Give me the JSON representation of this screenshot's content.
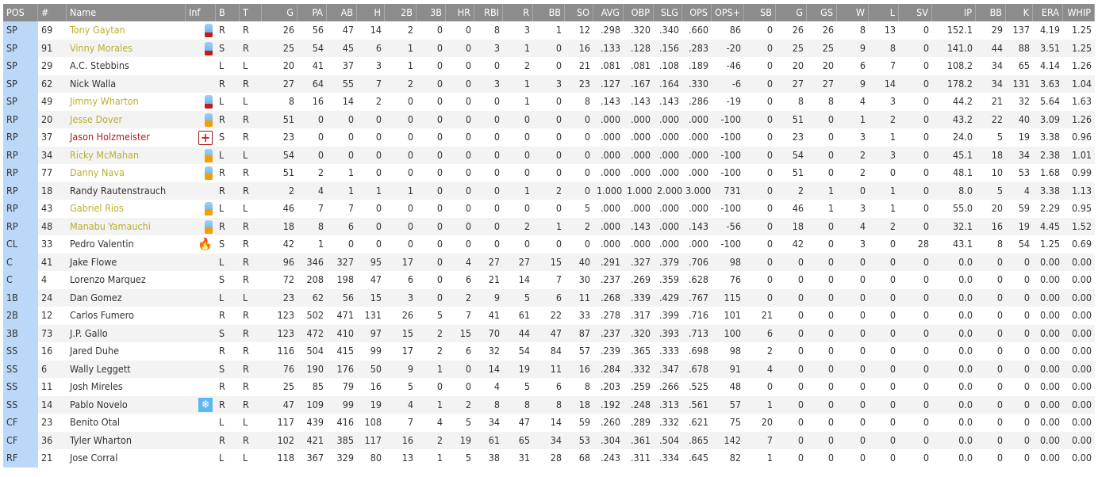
{
  "columns": [
    "POS",
    "#",
    "Name",
    "Inf",
    "B",
    "T",
    "G",
    "PA",
    "AB",
    "H",
    "2B",
    "3B",
    "HR",
    "RBI",
    "R",
    "BB",
    "SO",
    "AVG",
    "OBP",
    "SLG",
    "OPS",
    "OPS+",
    "SB",
    "G",
    "GS",
    "W",
    "L",
    "SV",
    "IP",
    "BB",
    "K",
    "ERA",
    "WHIP"
  ],
  "colors": {
    "header_bg": "#8c8c8c",
    "pos_bg": "#bcd8f8",
    "warn_name": "#b8b030",
    "injured_name": "#b02020"
  },
  "rows": [
    [
      "SP",
      "69",
      "Tony Gaytan",
      "battery-low-icon",
      "R",
      "R",
      "26",
      "56",
      "47",
      "14",
      "2",
      "0",
      "0",
      "8",
      "3",
      "1",
      "12",
      ".298",
      ".320",
      ".340",
      ".660",
      "86",
      "0",
      "26",
      "26",
      "8",
      "13",
      "0",
      "152.1",
      "29",
      "137",
      "4.19",
      "1.25"
    ],
    [
      "SP",
      "91",
      "Vinny Morales",
      "battery-low-icon",
      "S",
      "R",
      "25",
      "54",
      "45",
      "6",
      "1",
      "0",
      "0",
      "3",
      "1",
      "0",
      "16",
      ".133",
      ".128",
      ".156",
      ".283",
      "-20",
      "0",
      "25",
      "25",
      "9",
      "8",
      "0",
      "141.0",
      "44",
      "88",
      "3.51",
      "1.25"
    ],
    [
      "SP",
      "29",
      "A.C. Stebbins",
      "",
      "L",
      "L",
      "20",
      "41",
      "37",
      "3",
      "1",
      "0",
      "0",
      "0",
      "2",
      "0",
      "21",
      ".081",
      ".081",
      ".108",
      ".189",
      "-46",
      "0",
      "20",
      "20",
      "6",
      "7",
      "0",
      "108.2",
      "34",
      "65",
      "4.14",
      "1.26"
    ],
    [
      "SP",
      "62",
      "Nick Walla",
      "",
      "R",
      "R",
      "27",
      "64",
      "55",
      "7",
      "2",
      "0",
      "0",
      "3",
      "1",
      "3",
      "23",
      ".127",
      ".167",
      ".164",
      ".330",
      "-6",
      "0",
      "27",
      "27",
      "9",
      "14",
      "0",
      "178.2",
      "34",
      "131",
      "3.63",
      "1.04"
    ],
    [
      "SP",
      "49",
      "Jimmy Wharton",
      "battery-low-icon",
      "L",
      "L",
      "8",
      "16",
      "14",
      "2",
      "0",
      "0",
      "0",
      "0",
      "1",
      "0",
      "8",
      ".143",
      ".143",
      ".143",
      ".286",
      "-19",
      "0",
      "8",
      "8",
      "4",
      "3",
      "0",
      "44.2",
      "21",
      "32",
      "5.64",
      "1.63"
    ],
    [
      "RP",
      "20",
      "Jesse Dover",
      "battery-mid-icon",
      "R",
      "R",
      "51",
      "0",
      "0",
      "0",
      "0",
      "0",
      "0",
      "0",
      "0",
      "0",
      "0",
      ".000",
      ".000",
      ".000",
      ".000",
      "-100",
      "0",
      "51",
      "0",
      "1",
      "2",
      "0",
      "43.2",
      "22",
      "40",
      "3.09",
      "1.26"
    ],
    [
      "RP",
      "37",
      "Jason Holzmeister",
      "injury-icon",
      "S",
      "R",
      "23",
      "0",
      "0",
      "0",
      "0",
      "0",
      "0",
      "0",
      "0",
      "0",
      "0",
      ".000",
      ".000",
      ".000",
      ".000",
      "-100",
      "0",
      "23",
      "0",
      "3",
      "1",
      "0",
      "24.0",
      "5",
      "19",
      "3.38",
      "0.96"
    ],
    [
      "RP",
      "34",
      "Ricky McMahan",
      "battery-mid-icon",
      "L",
      "L",
      "54",
      "0",
      "0",
      "0",
      "0",
      "0",
      "0",
      "0",
      "0",
      "0",
      "0",
      ".000",
      ".000",
      ".000",
      ".000",
      "-100",
      "0",
      "54",
      "0",
      "2",
      "3",
      "0",
      "45.1",
      "18",
      "34",
      "2.38",
      "1.01"
    ],
    [
      "RP",
      "77",
      "Danny Nava",
      "battery-mid-icon",
      "R",
      "R",
      "51",
      "2",
      "1",
      "0",
      "0",
      "0",
      "0",
      "0",
      "0",
      "0",
      "0",
      ".000",
      ".000",
      ".000",
      ".000",
      "-100",
      "0",
      "51",
      "0",
      "2",
      "0",
      "0",
      "48.1",
      "10",
      "53",
      "1.68",
      "0.99"
    ],
    [
      "RP",
      "18",
      "Randy Rautenstrauch",
      "",
      "R",
      "R",
      "2",
      "4",
      "1",
      "1",
      "1",
      "0",
      "0",
      "0",
      "1",
      "2",
      "0",
      "1.000",
      "1.000",
      "2.000",
      "3.000",
      "731",
      "0",
      "2",
      "1",
      "0",
      "1",
      "0",
      "8.0",
      "5",
      "4",
      "3.38",
      "1.13"
    ],
    [
      "RP",
      "43",
      "Gabriel Rios",
      "battery-mid-icon",
      "L",
      "L",
      "46",
      "7",
      "7",
      "0",
      "0",
      "0",
      "0",
      "0",
      "0",
      "0",
      "5",
      ".000",
      ".000",
      ".000",
      ".000",
      "-100",
      "0",
      "46",
      "1",
      "3",
      "1",
      "0",
      "55.0",
      "20",
      "59",
      "2.29",
      "0.95"
    ],
    [
      "RP",
      "48",
      "Manabu Yamauchi",
      "battery-mid-icon",
      "R",
      "R",
      "18",
      "8",
      "6",
      "0",
      "0",
      "0",
      "0",
      "0",
      "2",
      "1",
      "2",
      ".000",
      ".143",
      ".000",
      ".143",
      "-56",
      "0",
      "18",
      "0",
      "4",
      "2",
      "0",
      "32.1",
      "16",
      "19",
      "4.45",
      "1.52"
    ],
    [
      "CL",
      "33",
      "Pedro Valentin",
      "fire-icon",
      "S",
      "R",
      "42",
      "1",
      "0",
      "0",
      "0",
      "0",
      "0",
      "0",
      "0",
      "0",
      "0",
      ".000",
      ".000",
      ".000",
      ".000",
      "-100",
      "0",
      "42",
      "0",
      "3",
      "0",
      "28",
      "43.1",
      "8",
      "54",
      "1.25",
      "0.69"
    ],
    [
      "C",
      "41",
      "Jake Flowe",
      "",
      "L",
      "R",
      "96",
      "346",
      "327",
      "95",
      "17",
      "0",
      "4",
      "27",
      "27",
      "15",
      "40",
      ".291",
      ".327",
      ".379",
      ".706",
      "98",
      "0",
      "0",
      "0",
      "0",
      "0",
      "0",
      "0.0",
      "0",
      "0",
      "0.00",
      "0.00"
    ],
    [
      "C",
      "4",
      "Lorenzo Marquez",
      "",
      "S",
      "R",
      "72",
      "208",
      "198",
      "47",
      "6",
      "0",
      "6",
      "21",
      "14",
      "7",
      "30",
      ".237",
      ".269",
      ".359",
      ".628",
      "76",
      "0",
      "0",
      "0",
      "0",
      "0",
      "0",
      "0.0",
      "0",
      "0",
      "0.00",
      "0.00"
    ],
    [
      "1B",
      "24",
      "Dan Gomez",
      "",
      "L",
      "L",
      "23",
      "62",
      "56",
      "15",
      "3",
      "0",
      "2",
      "9",
      "5",
      "6",
      "11",
      ".268",
      ".339",
      ".429",
      ".767",
      "115",
      "0",
      "0",
      "0",
      "0",
      "0",
      "0",
      "0.0",
      "0",
      "0",
      "0.00",
      "0.00"
    ],
    [
      "2B",
      "12",
      "Carlos Fumero",
      "",
      "R",
      "R",
      "123",
      "502",
      "471",
      "131",
      "26",
      "5",
      "7",
      "41",
      "61",
      "22",
      "33",
      ".278",
      ".317",
      ".399",
      ".716",
      "101",
      "21",
      "0",
      "0",
      "0",
      "0",
      "0",
      "0.0",
      "0",
      "0",
      "0.00",
      "0.00"
    ],
    [
      "3B",
      "73",
      "J.P. Gallo",
      "",
      "S",
      "R",
      "123",
      "472",
      "410",
      "97",
      "15",
      "2",
      "15",
      "70",
      "44",
      "47",
      "87",
      ".237",
      ".320",
      ".393",
      ".713",
      "100",
      "6",
      "0",
      "0",
      "0",
      "0",
      "0",
      "0.0",
      "0",
      "0",
      "0.00",
      "0.00"
    ],
    [
      "SS",
      "16",
      "Jared Duhe",
      "",
      "R",
      "R",
      "116",
      "504",
      "415",
      "99",
      "17",
      "2",
      "6",
      "32",
      "54",
      "84",
      "57",
      ".239",
      ".365",
      ".333",
      ".698",
      "98",
      "2",
      "0",
      "0",
      "0",
      "0",
      "0",
      "0.0",
      "0",
      "0",
      "0.00",
      "0.00"
    ],
    [
      "SS",
      "6",
      "Wally Leggett",
      "",
      "S",
      "R",
      "76",
      "190",
      "176",
      "50",
      "9",
      "1",
      "0",
      "14",
      "19",
      "11",
      "16",
      ".284",
      ".332",
      ".347",
      ".678",
      "91",
      "4",
      "0",
      "0",
      "0",
      "0",
      "0",
      "0.0",
      "0",
      "0",
      "0.00",
      "0.00"
    ],
    [
      "SS",
      "11",
      "Josh Mireles",
      "",
      "R",
      "R",
      "25",
      "85",
      "79",
      "16",
      "5",
      "0",
      "0",
      "4",
      "5",
      "6",
      "8",
      ".203",
      ".259",
      ".266",
      ".525",
      "48",
      "0",
      "0",
      "0",
      "0",
      "0",
      "0",
      "0.0",
      "0",
      "0",
      "0.00",
      "0.00"
    ],
    [
      "SS",
      "14",
      "Pablo Novelo",
      "snowflake-icon",
      "R",
      "R",
      "47",
      "109",
      "99",
      "19",
      "4",
      "1",
      "2",
      "8",
      "8",
      "8",
      "18",
      ".192",
      ".248",
      ".313",
      ".561",
      "57",
      "1",
      "0",
      "0",
      "0",
      "0",
      "0",
      "0.0",
      "0",
      "0",
      "0.00",
      "0.00"
    ],
    [
      "CF",
      "23",
      "Benito Otal",
      "",
      "L",
      "L",
      "117",
      "439",
      "416",
      "108",
      "7",
      "4",
      "5",
      "34",
      "47",
      "14",
      "59",
      ".260",
      ".289",
      ".332",
      ".621",
      "75",
      "20",
      "0",
      "0",
      "0",
      "0",
      "0",
      "0.0",
      "0",
      "0",
      "0.00",
      "0.00"
    ],
    [
      "CF",
      "36",
      "Tyler Wharton",
      "",
      "R",
      "R",
      "102",
      "421",
      "385",
      "117",
      "16",
      "2",
      "19",
      "61",
      "65",
      "34",
      "53",
      ".304",
      ".361",
      ".504",
      ".865",
      "142",
      "7",
      "0",
      "0",
      "0",
      "0",
      "0",
      "0.0",
      "0",
      "0",
      "0.00",
      "0.00"
    ],
    [
      "RF",
      "21",
      "Jose Corral",
      "",
      "L",
      "L",
      "118",
      "367",
      "329",
      "80",
      "13",
      "1",
      "5",
      "38",
      "31",
      "28",
      "68",
      ".243",
      ".311",
      ".334",
      ".645",
      "82",
      "1",
      "0",
      "0",
      "0",
      "0",
      "0",
      "0.0",
      "0",
      "0",
      "0.00",
      "0.00"
    ]
  ]
}
